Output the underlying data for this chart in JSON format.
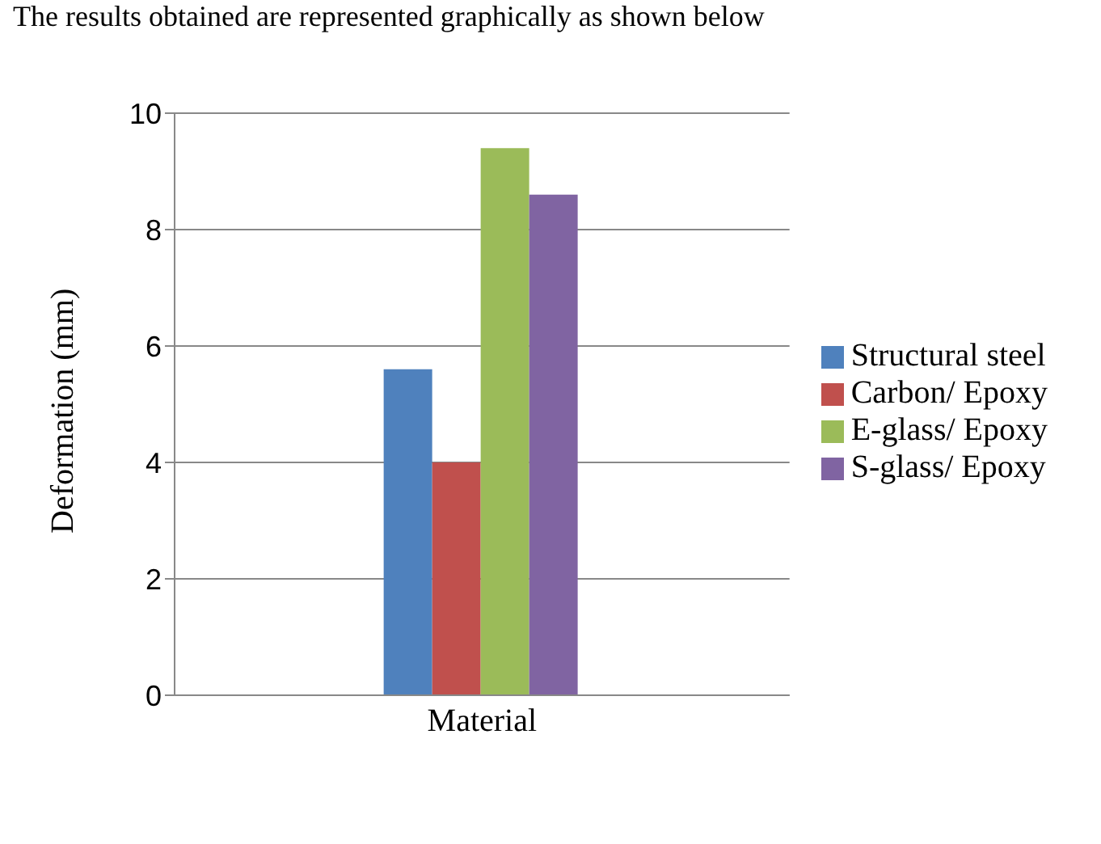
{
  "chart_data": {
    "type": "bar",
    "ylabel": "Deformation (mm)",
    "categories": [
      "Material"
    ],
    "series": [
      {
        "name": "Structural steel",
        "color": "#4f81bd",
        "values": [
          5.6
        ]
      },
      {
        "name": "Carbon/ Epoxy",
        "color": "#c0504d",
        "values": [
          4.0
        ]
      },
      {
        "name": "E-glass/ Epoxy",
        "color": "#9bbb59",
        "values": [
          9.4
        ]
      },
      {
        "name": "S-glass/ Epoxy",
        "color": "#8064a2",
        "values": [
          8.6
        ]
      }
    ],
    "ylim": [
      0,
      10
    ],
    "yticks": [
      0,
      2,
      4,
      6,
      8,
      10
    ],
    "grid": "y",
    "legend": "right",
    "annotations": [
      "The results obtained are represented graphically as shown below"
    ]
  }
}
